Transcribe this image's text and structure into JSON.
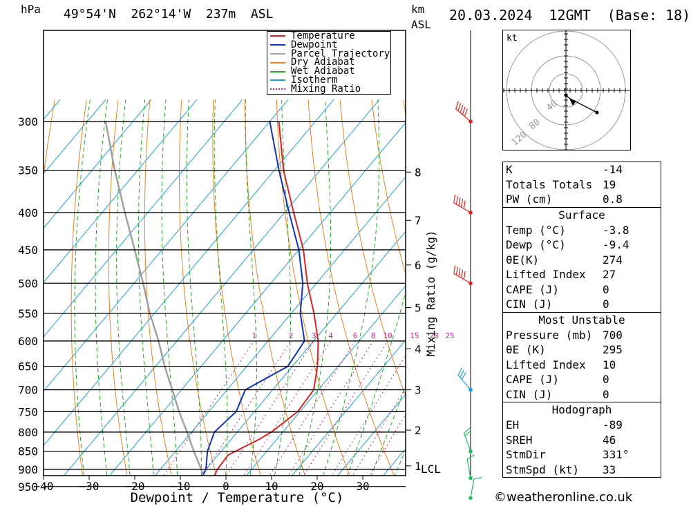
{
  "header": {
    "hpa_label": "hPa",
    "location": "49°54'N  262°14'W  237m  ASL",
    "km_label": "km",
    "asl_label": "ASL",
    "datetime": "20.03.2024  12GMT  (Base: 18)"
  },
  "chart_data": {
    "type": "skew-t",
    "xlabel": "Dewpoint / Temperature (°C)",
    "ylabel_right": "Mixing Ratio (g/kg)",
    "pressure_levels": [
      300,
      350,
      400,
      450,
      500,
      550,
      600,
      650,
      700,
      750,
      800,
      850,
      900,
      950
    ],
    "temperature_ticks": [
      -40,
      -30,
      -20,
      -10,
      0,
      10,
      20,
      30
    ],
    "km_ticks": [
      {
        "km": "1",
        "p": 890,
        "lcl": "LCL"
      },
      {
        "km": "2",
        "p": 795
      },
      {
        "km": "3",
        "p": 700
      },
      {
        "km": "4",
        "p": 615
      },
      {
        "km": "5",
        "p": 540
      },
      {
        "km": "6",
        "p": 472
      },
      {
        "km": "7",
        "p": 410
      },
      {
        "km": "8",
        "p": 352
      }
    ],
    "mixing_ratio_labels": [
      "1",
      "2",
      "3",
      "4",
      "6",
      "8",
      "10",
      "15",
      "20",
      "25"
    ],
    "mixing_ratio_values": [
      1,
      2,
      3,
      4,
      6,
      8,
      10,
      15,
      20,
      25
    ],
    "legend": [
      "Temperature",
      "Dewpoint",
      "Parcel Trajectory",
      "Dry Adiabat",
      "Wet Adiabat",
      "Isotherm",
      "Mixing Ratio"
    ],
    "series": [
      {
        "name": "Temperature",
        "color": "#e02020",
        "points": [
          [
            985,
            -3.8
          ],
          [
            950,
            -6
          ],
          [
            900,
            -7.5
          ],
          [
            860,
            -7.8
          ],
          [
            820,
            -4
          ],
          [
            800,
            -2.5
          ],
          [
            750,
            -0.5
          ],
          [
            700,
            -1
          ],
          [
            650,
            -4.5
          ],
          [
            600,
            -9
          ],
          [
            550,
            -15
          ],
          [
            500,
            -22
          ],
          [
            450,
            -29
          ],
          [
            400,
            -38
          ],
          [
            350,
            -48
          ],
          [
            300,
            -58
          ]
        ]
      },
      {
        "name": "Dewpoint",
        "color": "#1030c0",
        "points": [
          [
            985,
            -9.4
          ],
          [
            950,
            -8.7
          ],
          [
            900,
            -10
          ],
          [
            850,
            -13
          ],
          [
            800,
            -15
          ],
          [
            750,
            -14
          ],
          [
            700,
            -16
          ],
          [
            650,
            -11
          ],
          [
            600,
            -12
          ],
          [
            550,
            -18
          ],
          [
            500,
            -23
          ],
          [
            450,
            -30
          ],
          [
            400,
            -39
          ],
          [
            350,
            -49
          ],
          [
            300,
            -60
          ]
        ]
      },
      {
        "name": "Parcel Trajectory",
        "color": "#a0a0a0",
        "points": [
          [
            985,
            -3.8
          ],
          [
            950,
            -7
          ],
          [
            900,
            -11
          ],
          [
            850,
            -16
          ],
          [
            800,
            -21
          ],
          [
            750,
            -26.5
          ],
          [
            700,
            -32
          ],
          [
            650,
            -38
          ],
          [
            600,
            -44
          ],
          [
            550,
            -51
          ],
          [
            500,
            -58
          ],
          [
            450,
            -66
          ],
          [
            400,
            -75
          ],
          [
            350,
            -85
          ],
          [
            300,
            -96
          ]
        ]
      }
    ]
  },
  "wind_barbs": [
    {
      "p": 300,
      "dir": 310,
      "kt": 60
    },
    {
      "p": 400,
      "dir": 300,
      "kt": 55
    },
    {
      "p": 500,
      "dir": 300,
      "kt": 45
    },
    {
      "p": 700,
      "dir": 320,
      "kt": 30
    },
    {
      "p": 850,
      "dir": 340,
      "kt": 15
    },
    {
      "p": 925,
      "dir": 350,
      "kt": 10
    },
    {
      "p": 985,
      "dir": 10,
      "kt": 5
    }
  ],
  "hodograph": {
    "unit": "kt",
    "ring_labels": [
      "40",
      "80",
      "120"
    ]
  },
  "indices": {
    "basic": [
      {
        "label": "K",
        "value": "-14"
      },
      {
        "label": "Totals Totals",
        "value": "19"
      },
      {
        "label": "PW (cm)",
        "value": "0.8"
      }
    ],
    "surface": {
      "title": "Surface",
      "rows": [
        {
          "label": "Temp (°C)",
          "value": "-3.8"
        },
        {
          "label": "Dewp (°C)",
          "value": "-9.4"
        },
        {
          "label": "θE(K)",
          "value": "274"
        },
        {
          "label": "Lifted Index",
          "value": "27"
        },
        {
          "label": "CAPE (J)",
          "value": "0"
        },
        {
          "label": "CIN (J)",
          "value": "0"
        }
      ]
    },
    "most_unstable": {
      "title": "Most Unstable",
      "rows": [
        {
          "label": "Pressure (mb)",
          "value": "700"
        },
        {
          "label": "θE (K)",
          "value": "295"
        },
        {
          "label": "Lifted Index",
          "value": "10"
        },
        {
          "label": "CAPE (J)",
          "value": "0"
        },
        {
          "label": "CIN (J)",
          "value": "0"
        }
      ]
    },
    "hodograph": {
      "title": "Hodograph",
      "rows": [
        {
          "label": "EH",
          "value": "-89"
        },
        {
          "label": "SREH",
          "value": "46"
        },
        {
          "label": "StmDir",
          "value": "331°"
        },
        {
          "label": "StmSpd (kt)",
          "value": "33"
        }
      ]
    }
  },
  "credit": "©weatheronline.co.uk"
}
